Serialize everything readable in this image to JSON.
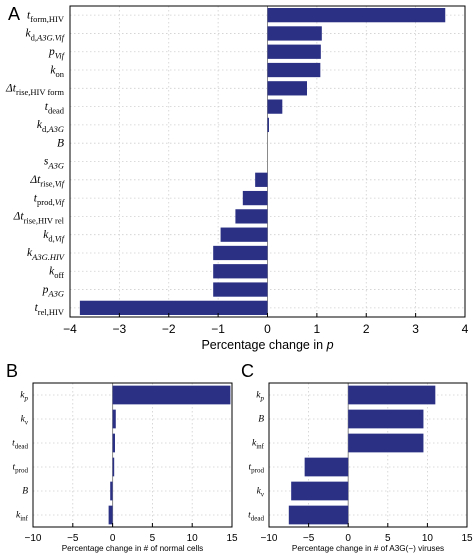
{
  "theme": {
    "bar_color": "#2b3085",
    "frame_color": "#000000",
    "grid_color": "#cfcfcf",
    "zero_line_color": "#8a8a8a"
  },
  "chart_data": [
    {
      "id": "A",
      "panel_label": "A",
      "type": "bar",
      "orientation": "horizontal",
      "xlabel_parts": [
        {
          "t": "Percentage change in "
        },
        {
          "t": "p",
          "it": true
        }
      ],
      "ylabel": "",
      "xlim": [
        -4,
        4
      ],
      "xticks": [
        -4,
        -3,
        -2,
        -1,
        0,
        1,
        2,
        3,
        4
      ],
      "tick_labels": [
        "−4",
        "−3",
        "−2",
        "−1",
        "0",
        "1",
        "2",
        "3",
        "4"
      ],
      "grid": true,
      "categories": [
        {
          "parts": [
            {
              "t": "t",
              "it": true
            },
            {
              "t": "form,HIV",
              "sub": true
            }
          ]
        },
        {
          "parts": [
            {
              "t": "k",
              "it": true
            },
            {
              "t": "d,",
              "sub": true
            },
            {
              "t": "A3G.Vif",
              "sub": true,
              "it": true
            }
          ]
        },
        {
          "parts": [
            {
              "t": "p",
              "it": true
            },
            {
              "t": "Vif",
              "sub": true,
              "it": true
            }
          ]
        },
        {
          "parts": [
            {
              "t": "k",
              "it": true
            },
            {
              "t": "on",
              "sub": true
            }
          ]
        },
        {
          "parts": [
            {
              "t": "Δt",
              "it": true
            },
            {
              "t": "rise,HIV form",
              "sub": true
            }
          ]
        },
        {
          "parts": [
            {
              "t": "t",
              "it": true
            },
            {
              "t": "dead",
              "sub": true
            }
          ]
        },
        {
          "parts": [
            {
              "t": "k",
              "it": true
            },
            {
              "t": "d,",
              "sub": true
            },
            {
              "t": "A3G",
              "sub": true,
              "it": true
            }
          ]
        },
        {
          "parts": [
            {
              "t": "B",
              "it": true
            }
          ]
        },
        {
          "parts": [
            {
              "t": "s",
              "it": true
            },
            {
              "t": "A3G",
              "sub": true,
              "it": true
            }
          ]
        },
        {
          "parts": [
            {
              "t": "Δt",
              "it": true
            },
            {
              "t": "rise,",
              "sub": true
            },
            {
              "t": "Vif",
              "sub": true,
              "it": true
            }
          ]
        },
        {
          "parts": [
            {
              "t": "t",
              "it": true
            },
            {
              "t": "prod,",
              "sub": true
            },
            {
              "t": "Vif",
              "sub": true,
              "it": true
            }
          ]
        },
        {
          "parts": [
            {
              "t": "Δt",
              "it": true
            },
            {
              "t": "rise,HIV rel",
              "sub": true
            }
          ]
        },
        {
          "parts": [
            {
              "t": "k",
              "it": true
            },
            {
              "t": "d,",
              "sub": true
            },
            {
              "t": "Vif",
              "sub": true,
              "it": true
            }
          ]
        },
        {
          "parts": [
            {
              "t": "k",
              "it": true
            },
            {
              "t": "A3G.HIV",
              "sub": true,
              "it": true
            }
          ]
        },
        {
          "parts": [
            {
              "t": "k",
              "it": true
            },
            {
              "t": "off",
              "sub": true
            }
          ]
        },
        {
          "parts": [
            {
              "t": "p",
              "it": true
            },
            {
              "t": "A3G",
              "sub": true,
              "it": true
            }
          ]
        },
        {
          "parts": [
            {
              "t": "t",
              "it": true
            },
            {
              "t": "rel,HIV",
              "sub": true
            }
          ]
        }
      ],
      "values": [
        3.6,
        1.1,
        1.08,
        1.07,
        0.8,
        0.3,
        0.03,
        0,
        0,
        -0.25,
        -0.5,
        -0.65,
        -0.95,
        -1.1,
        -1.1,
        -1.1,
        -3.8
      ]
    },
    {
      "id": "B",
      "panel_label": "B",
      "type": "bar",
      "orientation": "horizontal",
      "xlabel_parts": [
        {
          "t": "Percentage change in # of normal cells"
        }
      ],
      "ylabel": "",
      "xlim": [
        -10,
        15
      ],
      "xticks": [
        -10,
        -5,
        0,
        5,
        10,
        15
      ],
      "tick_labels": [
        "−10",
        "−5",
        "0",
        "5",
        "10",
        "15"
      ],
      "grid": true,
      "categories": [
        {
          "parts": [
            {
              "t": "k",
              "it": true
            },
            {
              "t": "p",
              "sub": true,
              "it": true
            }
          ]
        },
        {
          "parts": [
            {
              "t": "k",
              "it": true
            },
            {
              "t": "v",
              "sub": true,
              "it": true
            }
          ]
        },
        {
          "parts": [
            {
              "t": "t",
              "it": true
            },
            {
              "t": "dead",
              "sub": true
            }
          ]
        },
        {
          "parts": [
            {
              "t": "t",
              "it": true
            },
            {
              "t": "prod",
              "sub": true
            }
          ]
        },
        {
          "parts": [
            {
              "t": "B",
              "it": true
            }
          ]
        },
        {
          "parts": [
            {
              "t": "k",
              "it": true
            },
            {
              "t": "inf",
              "sub": true
            }
          ]
        }
      ],
      "values": [
        14.8,
        0.4,
        0.3,
        0.2,
        -0.3,
        -0.5
      ]
    },
    {
      "id": "C",
      "panel_label": "C",
      "type": "bar",
      "orientation": "horizontal",
      "xlabel_parts": [
        {
          "t": "Percentage change in # of A3G(−) viruses"
        }
      ],
      "ylabel": "",
      "xlim": [
        -10,
        15
      ],
      "xticks": [
        -10,
        -5,
        0,
        5,
        10,
        15
      ],
      "tick_labels": [
        "−10",
        "−5",
        "0",
        "5",
        "10",
        "15"
      ],
      "grid": true,
      "categories": [
        {
          "parts": [
            {
              "t": "k",
              "it": true
            },
            {
              "t": "p",
              "sub": true,
              "it": true
            }
          ]
        },
        {
          "parts": [
            {
              "t": "B",
              "it": true
            }
          ]
        },
        {
          "parts": [
            {
              "t": "k",
              "it": true
            },
            {
              "t": "inf",
              "sub": true
            }
          ]
        },
        {
          "parts": [
            {
              "t": "t",
              "it": true
            },
            {
              "t": "prod",
              "sub": true
            }
          ]
        },
        {
          "parts": [
            {
              "t": "k",
              "it": true
            },
            {
              "t": "v",
              "sub": true,
              "it": true
            }
          ]
        },
        {
          "parts": [
            {
              "t": "t",
              "it": true
            },
            {
              "t": "dead",
              "sub": true
            }
          ]
        }
      ],
      "values": [
        11,
        9.5,
        9.5,
        -5.5,
        -7.2,
        -7.5
      ]
    }
  ]
}
